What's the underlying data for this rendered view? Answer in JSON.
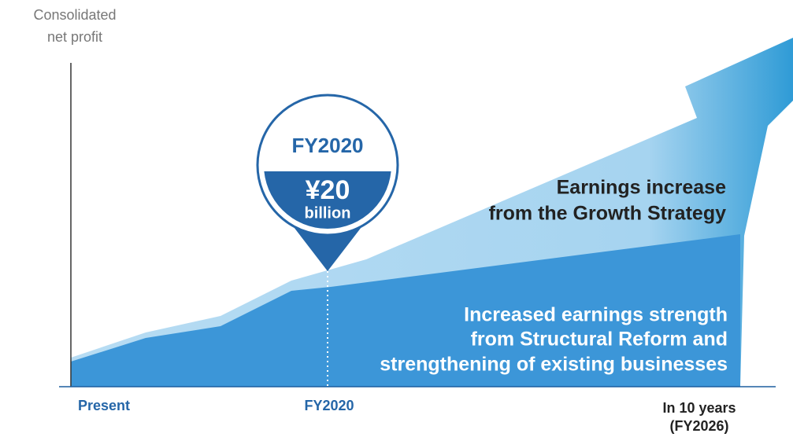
{
  "y_axis_label": [
    "Consolidated",
    "net profit"
  ],
  "x_labels": {
    "present": "Present",
    "fy2020": "FY2020",
    "end": [
      "In 10 years",
      "(FY2026)"
    ]
  },
  "callout": {
    "year": "FY2020",
    "amount": "¥20",
    "unit": "billion"
  },
  "growth_label": [
    "Earnings increase",
    "from the Growth Strategy"
  ],
  "base_label": [
    "Increased earnings strength",
    "from Structural Reform and",
    "strengthening of existing businesses"
  ]
}
